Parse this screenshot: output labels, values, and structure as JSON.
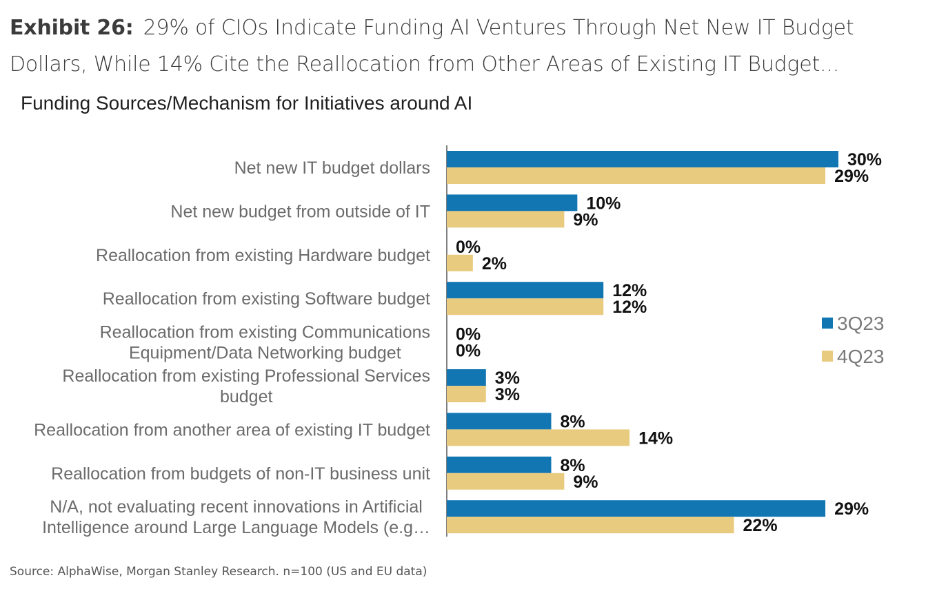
{
  "header": {
    "exhibit_label": "Exhibit 26:",
    "headline": "29% of CIOs Indicate Funding AI Ventures Through Net New IT Budget Dollars, While 14% Cite the Reallocation from Other Areas of Existing IT Budget..."
  },
  "chart_data": {
    "type": "bar",
    "orientation": "horizontal",
    "title": "Funding Sources/Mechanism for Initiatives around AI",
    "categories": [
      [
        "Net new IT budget dollars"
      ],
      [
        "Net new budget from outside of IT"
      ],
      [
        "Reallocation from existing Hardware budget"
      ],
      [
        "Reallocation from existing Software budget"
      ],
      [
        "Reallocation from existing Communications",
        "Equipment/Data Networking budget"
      ],
      [
        "Reallocation from existing Professional Services",
        "budget"
      ],
      [
        "Reallocation from another area of existing IT budget"
      ],
      [
        "Reallocation from budgets of non-IT business unit"
      ],
      [
        "N/A, not evaluating recent innovations in Artificial",
        "Intelligence around Large Language Models (e.g…"
      ]
    ],
    "series": [
      {
        "name": "3Q23",
        "color": "#1276b3",
        "values": [
          30,
          10,
          0,
          12,
          0,
          3,
          8,
          8,
          29
        ],
        "labels": [
          "30%",
          "10%",
          "0%",
          "12%",
          "0%",
          "3%",
          "8%",
          "8%",
          "29%"
        ]
      },
      {
        "name": "4Q23",
        "color": "#e9cb80",
        "values": [
          29,
          9,
          2,
          12,
          0,
          3,
          14,
          9,
          22
        ],
        "labels": [
          "29%",
          "9%",
          "2%",
          "12%",
          "0%",
          "3%",
          "14%",
          "9%",
          "22%"
        ]
      }
    ],
    "xlim": [
      0,
      30
    ],
    "legend_position": "right",
    "grid": false,
    "value_unit": "%"
  },
  "source": "Source: AlphaWise, Morgan Stanley Research. n=100 (US and EU data)"
}
